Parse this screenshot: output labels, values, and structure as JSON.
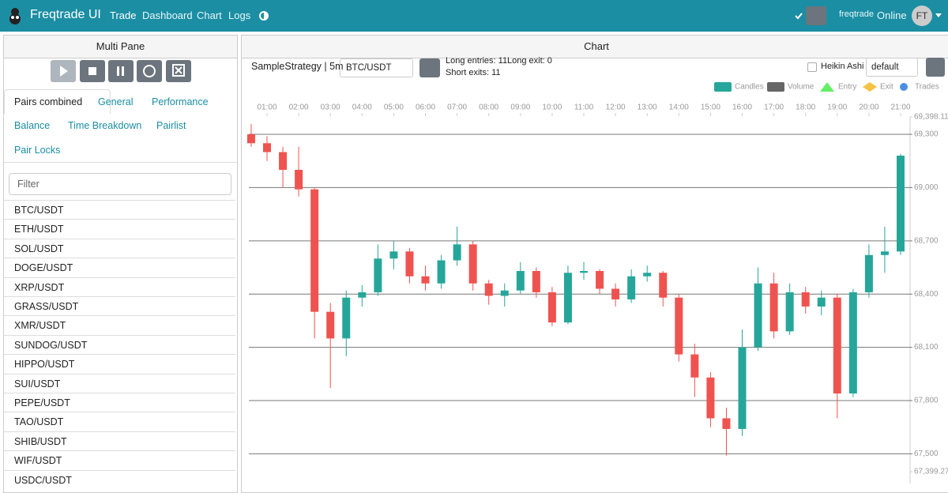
{
  "navbar": {
    "brand": "Freqtrade UI",
    "links": [
      "Trade",
      "Dashboard",
      "Chart",
      "Logs"
    ],
    "user": "freqtrade",
    "status": "Online",
    "avatar": "FT"
  },
  "left_panel": {
    "title": "Multi Pane",
    "tabs": [
      "Pairs combined",
      "General",
      "Performance",
      "Balance",
      "Time Breakdown",
      "Pairlist",
      "Pair Locks"
    ],
    "filter": "Filter",
    "pairs": [
      "BTC/USDT",
      "ETH/USDT",
      "SOL/USDT",
      "DOGE/USDT",
      "XRP/USDT",
      "GRASS/USDT",
      "XMR/USDT",
      "SUNDOG/USDT",
      "HIPPO/USDT",
      "SUI/USDT",
      "PEPE/USDT",
      "TAO/USDT",
      "SHIB/USDT",
      "WIF/USDT",
      "USDC/USDT"
    ]
  },
  "chart_panel": {
    "title": "Chart",
    "strategy": "SampleStrategy | 5m",
    "pair": "BTC/USDT",
    "long_entries": "Long entries: 11",
    "long_exit": "Long exit: 0",
    "short_exits": "Short exits: 11",
    "heikin_ashi": "Heikin Ashi",
    "layout": "default",
    "legend": [
      "Candles",
      "Volume",
      "Entry",
      "Exit",
      "Trades"
    ]
  },
  "chart_data": {
    "type": "candlestick",
    "xticks": [
      "01:00",
      "02:00",
      "03:00",
      "04:00",
      "05:00",
      "06:00",
      "07:00",
      "08:00",
      "09:00",
      "10:00",
      "11:00",
      "12:00",
      "13:00",
      "14:00",
      "15:00",
      "16:00",
      "17:00",
      "18:00",
      "19:00",
      "20:00",
      "21:00"
    ],
    "ylim": [
      67399.27,
      69398.11
    ],
    "yticks": [
      {
        "value": 67399.27,
        "label": "67,399.27"
      },
      {
        "value": 67500,
        "label": "67,500"
      },
      {
        "value": 67800,
        "label": "67,800"
      },
      {
        "value": 68100,
        "label": "68,100"
      },
      {
        "value": 68400,
        "label": "68,400"
      },
      {
        "value": 68700,
        "label": "68,700"
      },
      {
        "value": 69000,
        "label": "69,000"
      },
      {
        "value": 69300,
        "label": "69,300"
      },
      {
        "value": 69398.11,
        "label": "69,398.11"
      }
    ],
    "up_color": "#26a69a",
    "down_color": "#ef5350",
    "candles": [
      {
        "x": "00:30",
        "o": 69300,
        "h": 69358,
        "l": 69230,
        "c": 69250
      },
      {
        "x": "01:00",
        "o": 69250,
        "h": 69290,
        "l": 69150,
        "c": 69200
      },
      {
        "x": "01:30",
        "o": 69200,
        "h": 69230,
        "l": 69000,
        "c": 69100
      },
      {
        "x": "02:00",
        "o": 69100,
        "h": 69230,
        "l": 68950,
        "c": 68990
      },
      {
        "x": "02:30",
        "o": 68990,
        "h": 69000,
        "l": 68150,
        "c": 68300
      },
      {
        "x": "03:00",
        "o": 68300,
        "h": 68350,
        "l": 67870,
        "c": 68150
      },
      {
        "x": "03:30",
        "o": 68150,
        "h": 68420,
        "l": 68050,
        "c": 68380
      },
      {
        "x": "04:00",
        "o": 68380,
        "h": 68450,
        "l": 68330,
        "c": 68410
      },
      {
        "x": "04:30",
        "o": 68410,
        "h": 68680,
        "l": 68390,
        "c": 68600
      },
      {
        "x": "05:00",
        "o": 68600,
        "h": 68700,
        "l": 68540,
        "c": 68640
      },
      {
        "x": "05:30",
        "o": 68640,
        "h": 68660,
        "l": 68460,
        "c": 68500
      },
      {
        "x": "06:00",
        "o": 68500,
        "h": 68560,
        "l": 68420,
        "c": 68460
      },
      {
        "x": "06:30",
        "o": 68460,
        "h": 68620,
        "l": 68430,
        "c": 68590
      },
      {
        "x": "07:00",
        "o": 68590,
        "h": 68780,
        "l": 68560,
        "c": 68680
      },
      {
        "x": "07:30",
        "o": 68680,
        "h": 68700,
        "l": 68420,
        "c": 68460
      },
      {
        "x": "08:00",
        "o": 68460,
        "h": 68480,
        "l": 68340,
        "c": 68390
      },
      {
        "x": "08:30",
        "o": 68390,
        "h": 68460,
        "l": 68330,
        "c": 68420
      },
      {
        "x": "09:00",
        "o": 68420,
        "h": 68580,
        "l": 68400,
        "c": 68530
      },
      {
        "x": "09:30",
        "o": 68530,
        "h": 68550,
        "l": 68380,
        "c": 68410
      },
      {
        "x": "10:00",
        "o": 68410,
        "h": 68440,
        "l": 68220,
        "c": 68240
      },
      {
        "x": "10:30",
        "o": 68240,
        "h": 68560,
        "l": 68230,
        "c": 68520
      },
      {
        "x": "11:00",
        "o": 68520,
        "h": 68580,
        "l": 68480,
        "c": 68530
      },
      {
        "x": "11:30",
        "o": 68530,
        "h": 68540,
        "l": 68400,
        "c": 68430
      },
      {
        "x": "12:00",
        "o": 68430,
        "h": 68460,
        "l": 68330,
        "c": 68370
      },
      {
        "x": "12:30",
        "o": 68370,
        "h": 68540,
        "l": 68350,
        "c": 68500
      },
      {
        "x": "13:00",
        "o": 68500,
        "h": 68560,
        "l": 68470,
        "c": 68520
      },
      {
        "x": "13:30",
        "o": 68520,
        "h": 68530,
        "l": 68330,
        "c": 68380
      },
      {
        "x": "14:00",
        "o": 68380,
        "h": 68400,
        "l": 68020,
        "c": 68060
      },
      {
        "x": "14:30",
        "o": 68060,
        "h": 68120,
        "l": 67820,
        "c": 67930
      },
      {
        "x": "15:00",
        "o": 67930,
        "h": 67960,
        "l": 67650,
        "c": 67700
      },
      {
        "x": "15:30",
        "o": 67700,
        "h": 67760,
        "l": 67490,
        "c": 67640
      },
      {
        "x": "16:00",
        "o": 67640,
        "h": 68200,
        "l": 67600,
        "c": 68100
      },
      {
        "x": "16:30",
        "o": 68100,
        "h": 68550,
        "l": 68080,
        "c": 68460
      },
      {
        "x": "17:00",
        "o": 68460,
        "h": 68520,
        "l": 68150,
        "c": 68190
      },
      {
        "x": "17:30",
        "o": 68190,
        "h": 68460,
        "l": 68170,
        "c": 68410
      },
      {
        "x": "18:00",
        "o": 68410,
        "h": 68440,
        "l": 68290,
        "c": 68330
      },
      {
        "x": "18:30",
        "o": 68330,
        "h": 68420,
        "l": 68280,
        "c": 68380
      },
      {
        "x": "19:00",
        "o": 68380,
        "h": 68400,
        "l": 67700,
        "c": 67840
      },
      {
        "x": "19:30",
        "o": 67840,
        "h": 68430,
        "l": 67820,
        "c": 68410
      },
      {
        "x": "20:00",
        "o": 68410,
        "h": 68680,
        "l": 68380,
        "c": 68620
      },
      {
        "x": "20:30",
        "o": 68620,
        "h": 68780,
        "l": 68520,
        "c": 68640
      },
      {
        "x": "21:00",
        "o": 68640,
        "h": 69190,
        "l": 68620,
        "c": 69180
      }
    ]
  }
}
